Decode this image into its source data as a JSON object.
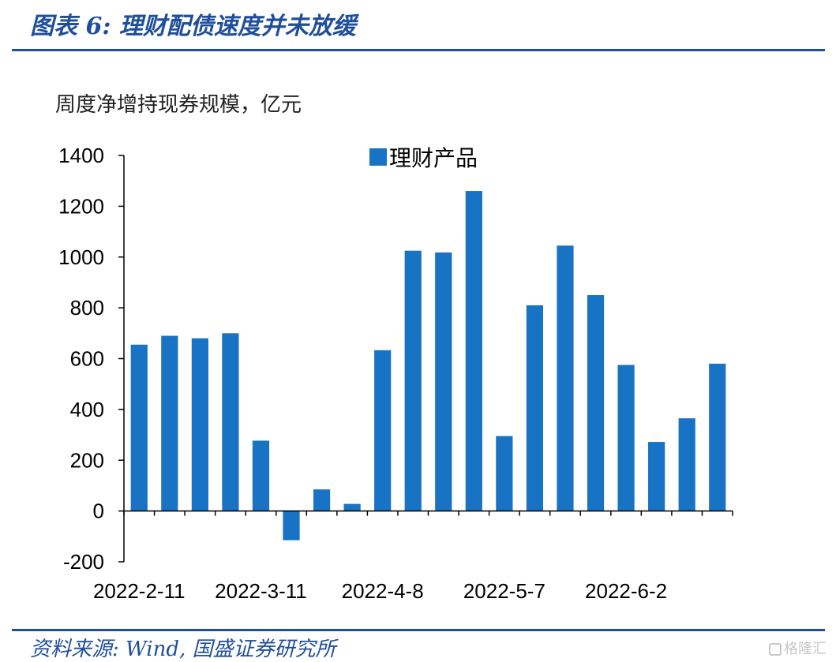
{
  "header": {
    "figure_title": "图表 6:  理财配债速度并未放缓"
  },
  "footer": {
    "source": "资料来源: Wind, 国盛证券研究所",
    "watermark": "格隆汇"
  },
  "colors": {
    "bar": "#1873c4",
    "brand": "#1f4e9b"
  },
  "chart_data": {
    "type": "bar",
    "title": "",
    "subtitle": "周度净增持现券规模，亿元",
    "xlabel": "",
    "ylabel": "",
    "ylim": [
      -200,
      1400
    ],
    "yticks": [
      -200,
      0,
      200,
      400,
      600,
      800,
      1000,
      1200,
      1400
    ],
    "x_tick_labels": [
      "2022-2-11",
      "2022-3-11",
      "2022-4-8",
      "2022-5-7",
      "2022-6-2"
    ],
    "legend_position": "top-center",
    "grid": false,
    "series": [
      {
        "name": "理财产品",
        "values": [
          655,
          690,
          680,
          700,
          277,
          -115,
          85,
          28,
          633,
          1025,
          1018,
          1260,
          295,
          810,
          1045,
          850,
          575,
          272,
          365,
          580
        ]
      }
    ]
  }
}
